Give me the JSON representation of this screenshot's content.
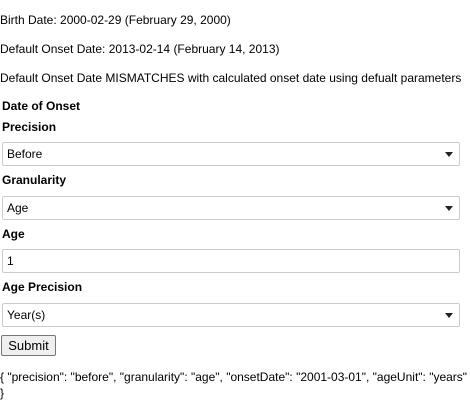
{
  "info": {
    "birth_date": "Birth Date: 2000-02-29 (February 29, 2000)",
    "default_onset": "Default Onset Date: 2013-02-14 (February 14, 2013)",
    "mismatch": "Default Onset Date MISMATCHES with calculated onset date using defualt parameters"
  },
  "form": {
    "section_title": "Date of Onset",
    "precision": {
      "label": "Precision",
      "value": "Before"
    },
    "granularity": {
      "label": "Granularity",
      "value": "Age"
    },
    "age": {
      "label": "Age",
      "value": "1"
    },
    "age_precision": {
      "label": "Age Precision",
      "value": "Year(s)"
    },
    "submit_label": "Submit"
  },
  "output": {
    "json_text": "{ \"precision\": \"before\", \"granularity\": \"age\", \"onsetDate\": \"2001-03-01\", \"ageUnit\": \"years\"\n}"
  },
  "icons": {
    "select_caret": "chevron-down-icon"
  }
}
